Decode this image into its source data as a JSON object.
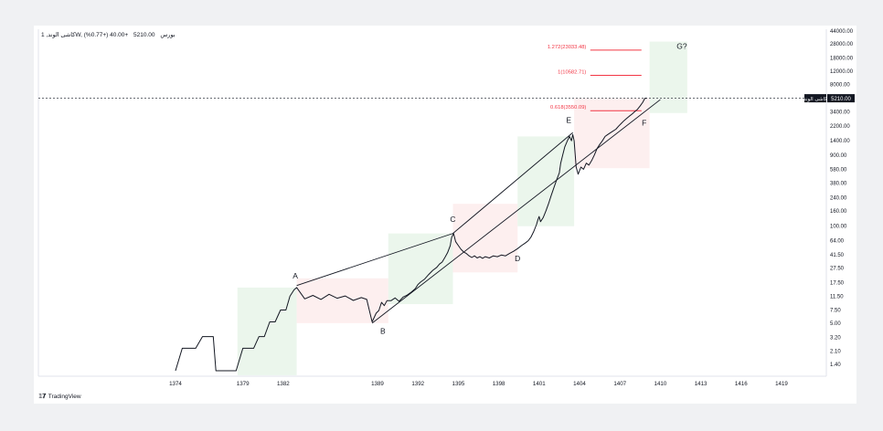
{
  "header": {
    "symbol": "کاشی الوند, 1W, بورس",
    "price": "5210.00",
    "change": "+40.00 (+0.77%)"
  },
  "footer": {
    "brand": "TradingView",
    "logo_icon": "tradingview-logo-icon"
  },
  "colors": {
    "green_zone": "#e8f5e9",
    "red_zone": "#fdecec",
    "target_line": "#f23645",
    "price_line": "#131722",
    "trend_line": "#131722"
  },
  "chart_data": {
    "type": "line",
    "title": "",
    "xlabel": "",
    "ylabel": "",
    "y_scale": "log",
    "x_ticks": [
      1374,
      1379,
      1382,
      1389,
      1392,
      1395,
      1398,
      1401,
      1404,
      1407,
      1410,
      1413,
      1416,
      1419
    ],
    "y_ticks": [
      "44000.00",
      "28000.00",
      "18000.00",
      "12000.00",
      "8000.00",
      "3400.00",
      "2200.00",
      "1400.00",
      "900.00",
      "580.00",
      "380.00",
      "240.00",
      "160.00",
      "100.00",
      "64.00",
      "41.50",
      "27.50",
      "17.50",
      "11.50",
      "7.50",
      "5.00",
      "3.20",
      "2.10",
      "1.40"
    ],
    "current_price_label": {
      "name": "کاشی الوند",
      "value": "5210.00",
      "y": 5210
    },
    "price_series": [
      [
        1374.0,
        1.15
      ],
      [
        1374.5,
        2.3
      ],
      [
        1375.5,
        2.3
      ],
      [
        1376.0,
        3.3
      ],
      [
        1376.8,
        3.3
      ],
      [
        1377.0,
        1.15
      ],
      [
        1378.5,
        1.15
      ],
      [
        1379.0,
        2.3
      ],
      [
        1379.8,
        2.3
      ],
      [
        1380.2,
        3.3
      ],
      [
        1380.6,
        3.3
      ],
      [
        1381.0,
        5.2
      ],
      [
        1381.4,
        5.2
      ],
      [
        1381.8,
        7.5
      ],
      [
        1382.2,
        7.5
      ],
      [
        1382.5,
        11.5
      ],
      [
        1382.8,
        14.0
      ],
      [
        1383.0,
        15.0
      ],
      [
        1383.6,
        10.6
      ],
      [
        1384.2,
        11.8
      ],
      [
        1384.8,
        10.4
      ],
      [
        1385.4,
        12.2
      ],
      [
        1386.0,
        10.8
      ],
      [
        1386.6,
        11.6
      ],
      [
        1387.2,
        10.1
      ],
      [
        1387.8,
        11.0
      ],
      [
        1388.2,
        10.4
      ],
      [
        1388.6,
        5.2
      ],
      [
        1388.9,
        6.8
      ],
      [
        1389.1,
        7.4
      ],
      [
        1389.3,
        9.5
      ],
      [
        1389.5,
        8.6
      ],
      [
        1389.7,
        10.0
      ],
      [
        1390.0,
        10.0
      ],
      [
        1390.3,
        10.9
      ],
      [
        1390.6,
        9.8
      ],
      [
        1390.9,
        11.2
      ],
      [
        1391.2,
        11.9
      ],
      [
        1391.5,
        13.0
      ],
      [
        1391.8,
        14.5
      ],
      [
        1392.0,
        16.5
      ],
      [
        1392.2,
        17.8
      ],
      [
        1392.5,
        19.5
      ],
      [
        1392.8,
        22.5
      ],
      [
        1393.1,
        25.5
      ],
      [
        1393.4,
        28.0
      ],
      [
        1393.6,
        31.0
      ],
      [
        1393.8,
        33.0
      ],
      [
        1394.0,
        38.0
      ],
      [
        1394.2,
        44.0
      ],
      [
        1394.4,
        55.0
      ],
      [
        1394.5,
        70.0
      ],
      [
        1394.65,
        80.0
      ],
      [
        1394.8,
        62.0
      ],
      [
        1395.0,
        55.0
      ],
      [
        1395.2,
        49.0
      ],
      [
        1395.4,
        45.0
      ],
      [
        1395.6,
        43.0
      ],
      [
        1395.8,
        40.0
      ],
      [
        1396.0,
        38.0
      ],
      [
        1396.2,
        40.0
      ],
      [
        1396.4,
        37.5
      ],
      [
        1396.6,
        39.0
      ],
      [
        1396.8,
        37.0
      ],
      [
        1397.0,
        39.0
      ],
      [
        1397.3,
        37.5
      ],
      [
        1397.6,
        40.0
      ],
      [
        1397.9,
        39.0
      ],
      [
        1398.2,
        41.0
      ],
      [
        1398.5,
        40.0
      ],
      [
        1398.8,
        43.0
      ],
      [
        1399.1,
        46.0
      ],
      [
        1399.4,
        50.0
      ],
      [
        1399.7,
        55.0
      ],
      [
        1400.0,
        60.0
      ],
      [
        1400.2,
        64.0
      ],
      [
        1400.4,
        72.0
      ],
      [
        1400.6,
        85.0
      ],
      [
        1400.8,
        105.0
      ],
      [
        1400.9,
        120.0
      ],
      [
        1401.0,
        135.0
      ],
      [
        1401.1,
        115.0
      ],
      [
        1401.3,
        130.0
      ],
      [
        1401.5,
        160.0
      ],
      [
        1401.7,
        200.0
      ],
      [
        1401.9,
        260.0
      ],
      [
        1402.1,
        330.0
      ],
      [
        1402.3,
        420.0
      ],
      [
        1402.5,
        520.0
      ],
      [
        1402.6,
        700.0
      ],
      [
        1402.75,
        900.0
      ],
      [
        1402.9,
        1150.0
      ],
      [
        1403.1,
        1400.0
      ],
      [
        1403.25,
        1600.0
      ],
      [
        1403.4,
        1400.0
      ],
      [
        1403.5,
        1700.0
      ],
      [
        1403.6,
        1400.0
      ],
      [
        1403.75,
        620.0
      ],
      [
        1403.9,
        500.0
      ],
      [
        1404.1,
        620.0
      ],
      [
        1404.3,
        580.0
      ],
      [
        1404.5,
        700.0
      ],
      [
        1404.7,
        660.0
      ],
      [
        1404.9,
        760.0
      ],
      [
        1405.1,
        900.0
      ],
      [
        1405.3,
        1100.0
      ],
      [
        1405.5,
        1250.0
      ],
      [
        1405.7,
        1400.0
      ],
      [
        1405.9,
        1600.0
      ],
      [
        1406.1,
        1700.0
      ],
      [
        1406.3,
        1800.0
      ],
      [
        1406.5,
        1900.0
      ],
      [
        1406.7,
        2000.0
      ],
      [
        1406.9,
        2200.0
      ],
      [
        1407.1,
        2400.0
      ],
      [
        1407.3,
        2600.0
      ],
      [
        1407.5,
        2800.0
      ],
      [
        1407.7,
        3000.0
      ],
      [
        1407.9,
        3200.0
      ],
      [
        1408.1,
        3450.0
      ],
      [
        1408.3,
        3700.0
      ],
      [
        1408.5,
        4100.0
      ],
      [
        1408.7,
        4600.0
      ],
      [
        1408.85,
        5210.0
      ],
      [
        1409.0,
        5210.0
      ]
    ],
    "waves": [
      {
        "label": "A",
        "x": 1382.9,
        "y": 20.0
      },
      {
        "label": "B",
        "x": 1389.4,
        "y": 3.6
      },
      {
        "label": "C",
        "x": 1394.6,
        "y": 115.0
      },
      {
        "label": "D",
        "x": 1399.4,
        "y": 34.0
      },
      {
        "label": "E",
        "x": 1403.2,
        "y": 2450.0
      },
      {
        "label": "F",
        "x": 1408.8,
        "y": 2250.0
      },
      {
        "label": "G?",
        "x": 1411.6,
        "y": 24000.0
      }
    ],
    "fib_targets": [
      {
        "label": "1.272(23033.48)",
        "value": 23033.48
      },
      {
        "label": "1(10582.71)",
        "value": 10582.71
      },
      {
        "label": "0.618(3550.09)",
        "value": 3550.09
      }
    ],
    "trendlines": [
      {
        "from": [
          1383.0,
          16.0
        ],
        "to": [
          1394.6,
          80.0
        ]
      },
      {
        "from": [
          1394.6,
          80.0
        ],
        "to": [
          1403.5,
          1800.0
        ]
      },
      {
        "from": [
          1388.6,
          5.0
        ],
        "to": [
          1410.0,
          5000.0
        ]
      }
    ],
    "zones": [
      {
        "color": "green",
        "x0": 1378.6,
        "x1": 1383.0,
        "y0": 1.0,
        "y1": 15.0
      },
      {
        "color": "red",
        "x0": 1383.0,
        "x1": 1389.8,
        "y0": 5.0,
        "y1": 20.0
      },
      {
        "color": "green",
        "x0": 1389.8,
        "x1": 1394.6,
        "y0": 9.0,
        "y1": 80.0
      },
      {
        "color": "red",
        "x0": 1394.6,
        "x1": 1399.4,
        "y0": 24.0,
        "y1": 200.0
      },
      {
        "color": "green",
        "x0": 1399.4,
        "x1": 1403.6,
        "y0": 100.0,
        "y1": 1600.0
      },
      {
        "color": "red",
        "x0": 1403.6,
        "x1": 1409.2,
        "y0": 600.0,
        "y1": 5210.0
      },
      {
        "color": "green",
        "x0": 1409.2,
        "x1": 1412.0,
        "y0": 3300.0,
        "y1": 30000.0
      }
    ]
  }
}
